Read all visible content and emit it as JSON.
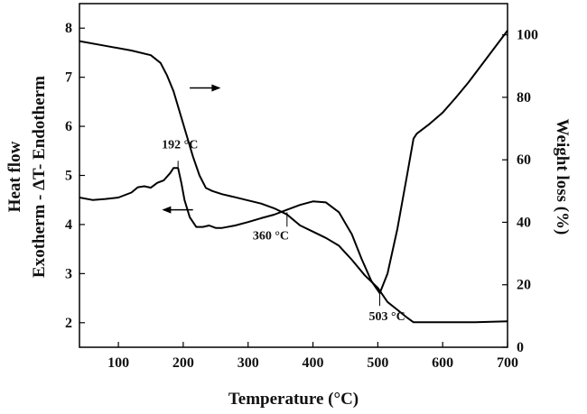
{
  "chart_data": {
    "type": "line",
    "title": "",
    "xlabel": "Temperature (°C)",
    "ylabel_left_line1": "Heat flow",
    "ylabel_left_line2": "Exotherm - ΔT- Endotherm",
    "ylabel_right": "Weight loss (%)",
    "xlim": [
      40,
      700
    ],
    "ylim_left": [
      1.5,
      8.5
    ],
    "ylim_right": [
      0,
      110
    ],
    "x_ticks": [
      100,
      200,
      300,
      400,
      500,
      600,
      700
    ],
    "y_left_ticks": [
      2,
      3,
      4,
      5,
      6,
      7,
      8
    ],
    "y_right_ticks": [
      0,
      20,
      40,
      60,
      80,
      100
    ],
    "grid": false,
    "annotations": [
      {
        "text": "192 °C",
        "x": 192,
        "y": 5.15
      },
      {
        "text": "360 °C",
        "x": 360,
        "y": 4.25
      },
      {
        "text": "503 °C",
        "x": 503,
        "y": 2.6
      }
    ],
    "series": [
      {
        "axis": "left",
        "x": [
          40,
          60,
          80,
          100,
          120,
          130,
          140,
          150,
          160,
          170,
          180,
          185,
          192,
          197,
          202,
          210,
          220,
          230,
          240,
          250,
          260,
          280,
          300,
          320,
          340,
          360,
          380,
          400,
          420,
          440,
          460,
          475,
          490,
          503,
          515,
          530,
          545,
          555,
          560,
          580,
          600,
          620,
          640,
          660,
          680,
          700
        ],
        "values": [
          4.55,
          4.5,
          4.52,
          4.55,
          4.65,
          4.76,
          4.78,
          4.75,
          4.85,
          4.9,
          5.05,
          5.15,
          5.15,
          4.85,
          4.5,
          4.15,
          3.95,
          3.95,
          3.98,
          3.93,
          3.93,
          3.98,
          4.05,
          4.13,
          4.2,
          4.3,
          4.4,
          4.47,
          4.45,
          4.25,
          3.8,
          3.3,
          2.85,
          2.6,
          3.0,
          3.9,
          5.0,
          5.75,
          5.85,
          6.05,
          6.28,
          6.58,
          6.9,
          7.25,
          7.6,
          7.95
        ]
      },
      {
        "axis": "right",
        "x": [
          40,
          80,
          120,
          150,
          165,
          175,
          185,
          195,
          205,
          215,
          225,
          235,
          245,
          260,
          280,
          300,
          320,
          340,
          360,
          380,
          400,
          420,
          440,
          460,
          480,
          500,
          515,
          530,
          545,
          555,
          570,
          600,
          650,
          700
        ],
        "values": [
          98,
          96.5,
          95,
          93.5,
          91,
          87,
          82,
          75,
          68,
          61,
          55,
          51,
          50,
          49,
          48,
          47,
          46,
          44.5,
          42.5,
          39,
          37,
          35,
          32.5,
          28,
          23,
          19,
          14.5,
          12,
          9.5,
          8,
          8,
          8,
          8,
          8.3
        ]
      }
    ],
    "arrows": [
      {
        "points_to": "right",
        "x_from": 210,
        "x_to": 255,
        "y_right": 83
      },
      {
        "points_to": "left",
        "x_from": 215,
        "x_to": 170,
        "y_left": 4.3
      }
    ]
  }
}
